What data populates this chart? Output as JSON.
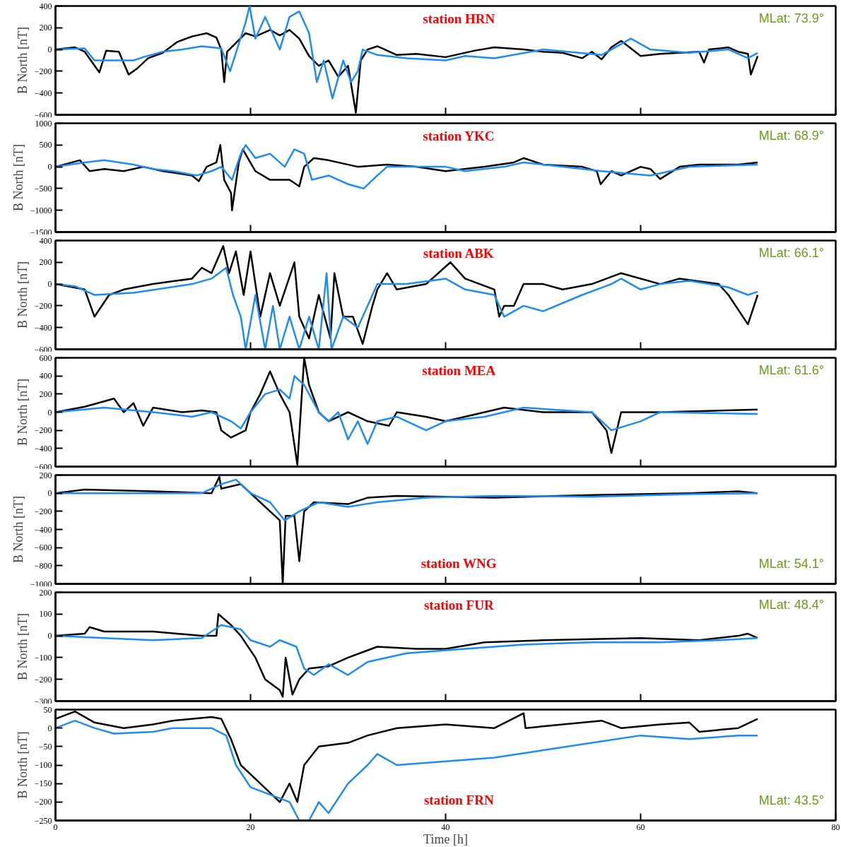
{
  "chart_data": [
    {
      "type": "line",
      "ylabel": "B North [nT]",
      "xlim": [
        0,
        80
      ],
      "xticks": [
        0,
        20,
        40,
        60,
        80
      ],
      "ylim": [
        -600,
        400
      ],
      "yticks": [
        -600,
        -400,
        -200,
        0,
        200,
        400
      ],
      "tick_labels": "y",
      "annotations": [
        "station HRN",
        "MLat: 73.9°"
      ],
      "series": [
        {
          "color": "#000000",
          "x": [
            0,
            2,
            3,
            4.5,
            5.2,
            6.5,
            7.5,
            8.3,
            9.5,
            11,
            12.5,
            14,
            15.5,
            16.5,
            17,
            17.3,
            17.6,
            18.5,
            19.5,
            20.5,
            22,
            23,
            24,
            25,
            26,
            27,
            28,
            29,
            30,
            30.8,
            31.3,
            32,
            33,
            35,
            37,
            40,
            43,
            45,
            48,
            50,
            52,
            54,
            55,
            56,
            57,
            58,
            60,
            62,
            64,
            66,
            66.5,
            67,
            69,
            70,
            71,
            71.3,
            72
          ],
          "values": [
            0,
            20,
            -20,
            -210,
            -10,
            -20,
            -230,
            -180,
            -80,
            -30,
            70,
            120,
            150,
            110,
            0,
            -300,
            -20,
            60,
            150,
            120,
            180,
            130,
            180,
            100,
            -60,
            -150,
            -100,
            -250,
            -150,
            -580,
            -100,
            0,
            30,
            -50,
            -40,
            -70,
            -10,
            20,
            0,
            -20,
            -30,
            -80,
            -20,
            -90,
            20,
            80,
            -60,
            -40,
            -30,
            -20,
            -120,
            0,
            20,
            -20,
            -40,
            -230,
            -60
          ]
        },
        {
          "color": "#1e8cf0",
          "x": [
            0,
            3,
            4,
            8,
            9,
            11,
            13,
            15,
            17,
            17.9,
            19.5,
            19.9,
            20.5,
            21.5,
            23,
            24,
            25,
            26,
            26.8,
            27.5,
            28.4,
            29.5,
            30.3,
            31,
            31.5,
            33,
            36,
            40,
            42,
            45,
            50,
            56,
            57,
            59,
            61,
            65,
            69,
            71,
            72
          ],
          "values": [
            0,
            10,
            -100,
            -100,
            -70,
            -20,
            0,
            30,
            10,
            -200,
            250,
            400,
            100,
            300,
            0,
            300,
            350,
            150,
            -300,
            -100,
            -450,
            -100,
            -300,
            -200,
            0,
            -50,
            -80,
            -100,
            -60,
            -80,
            0,
            -50,
            0,
            100,
            0,
            -30,
            0,
            -80,
            -30
          ]
        }
      ]
    },
    {
      "type": "line",
      "ylabel": "B North [nT]",
      "xlim": [
        0,
        80
      ],
      "xticks": [
        0,
        20,
        40,
        60,
        80
      ],
      "ylim": [
        -1500,
        1000
      ],
      "yticks": [
        -1500,
        -1000,
        -500,
        0,
        500,
        1000
      ],
      "tick_labels": "y",
      "annotations": [
        "station YKC",
        "MLat: 68.9°"
      ],
      "series": [
        {
          "color": "#000000",
          "x": [
            0,
            2.5,
            3.5,
            5,
            7,
            9,
            11,
            14,
            14.7,
            15.5,
            16.5,
            16.9,
            17.3,
            18,
            18.1,
            18.8,
            19.2,
            20.5,
            22,
            24,
            25,
            25.5,
            26.5,
            28,
            31,
            34,
            37,
            40,
            44,
            47,
            48,
            50,
            54,
            55.5,
            55.9,
            57,
            58,
            60,
            61,
            62,
            64,
            66,
            70,
            72
          ],
          "values": [
            0,
            150,
            -100,
            -50,
            -100,
            0,
            -100,
            -200,
            -330,
            0,
            100,
            500,
            -300,
            -600,
            -1000,
            100,
            400,
            -100,
            -300,
            -300,
            -450,
            0,
            200,
            150,
            0,
            50,
            0,
            -100,
            0,
            100,
            200,
            50,
            0,
            -100,
            -400,
            -100,
            -200,
            0,
            -50,
            -280,
            0,
            50,
            50,
            100
          ]
        },
        {
          "color": "#1e8cf0",
          "x": [
            0,
            3,
            5,
            8,
            10,
            12,
            14.5,
            16,
            17,
            18.1,
            19,
            19.5,
            20.5,
            22,
            23.5,
            24.5,
            25.5,
            26.3,
            28,
            30,
            31.6,
            33,
            34,
            40,
            42,
            46,
            48,
            52,
            56,
            61,
            65,
            72
          ],
          "values": [
            0,
            100,
            150,
            50,
            -50,
            -100,
            -200,
            -100,
            0,
            -300,
            300,
            500,
            200,
            300,
            0,
            400,
            300,
            -300,
            -200,
            -400,
            -500,
            -200,
            0,
            0,
            -100,
            0,
            100,
            0,
            -100,
            -200,
            0,
            50
          ]
        }
      ]
    },
    {
      "type": "line",
      "ylabel": "B North [nT]",
      "xlim": [
        0,
        80
      ],
      "xticks": [
        0,
        20,
        40,
        60,
        80
      ],
      "ylim": [
        -600,
        400
      ],
      "yticks": [
        -600,
        -400,
        -200,
        0,
        200,
        400
      ],
      "tick_labels": "y",
      "annotations": [
        "station ABK",
        "MLat: 66.1°"
      ],
      "series": [
        {
          "color": "#000000",
          "x": [
            0,
            3,
            4,
            5.5,
            7,
            10,
            14,
            15,
            16,
            17.2,
            17.8,
            18.5,
            19.3,
            20,
            21,
            22,
            23,
            24.5,
            25,
            26,
            27,
            28.2,
            28.6,
            29.5,
            30.5,
            31.5,
            32.5,
            33,
            34,
            35,
            38,
            40.5,
            42,
            45,
            45.5,
            46,
            47,
            48,
            50,
            52,
            55,
            58,
            62,
            64,
            68,
            69,
            71,
            72
          ],
          "values": [
            0,
            -50,
            -300,
            -100,
            -50,
            0,
            50,
            150,
            100,
            350,
            100,
            300,
            -100,
            300,
            -300,
            100,
            -200,
            200,
            -300,
            -500,
            -100,
            -500,
            100,
            -300,
            -300,
            -550,
            -200,
            -50,
            100,
            -50,
            0,
            200,
            50,
            -50,
            -300,
            -200,
            -200,
            0,
            0,
            -50,
            0,
            100,
            0,
            50,
            0,
            -100,
            -370,
            -100
          ]
        },
        {
          "color": "#1e8cf0",
          "x": [
            0,
            2,
            4,
            8,
            14,
            16,
            17.5,
            18.2,
            19,
            19.5,
            20.5,
            21.5,
            22.3,
            23,
            24,
            25,
            26,
            27,
            27.8,
            28.3,
            29.5,
            31,
            32,
            33,
            36,
            40,
            42,
            45,
            46,
            48,
            50,
            54,
            57,
            58,
            60,
            62,
            65,
            69,
            71,
            72
          ],
          "values": [
            0,
            -20,
            -100,
            -80,
            0,
            50,
            150,
            -100,
            -300,
            -600,
            -100,
            -600,
            -200,
            -600,
            -300,
            -600,
            -300,
            -600,
            100,
            -600,
            -300,
            -400,
            -200,
            0,
            0,
            50,
            -50,
            -100,
            -300,
            -200,
            -250,
            -100,
            0,
            50,
            -50,
            0,
            30,
            -30,
            -100,
            -70
          ]
        }
      ]
    },
    {
      "type": "line",
      "ylabel": "B North [nT]",
      "xlim": [
        0,
        80
      ],
      "xticks": [
        0,
        20,
        40,
        60,
        80
      ],
      "ylim": [
        -600,
        600
      ],
      "yticks": [
        -600,
        -400,
        -200,
        0,
        200,
        400,
        600
      ],
      "tick_labels": "y",
      "annotations": [
        "station MEA",
        "MLat: 61.6°"
      ],
      "series": [
        {
          "color": "#000000",
          "x": [
            0,
            3,
            6,
            7,
            8,
            9,
            10,
            13,
            15,
            16.5,
            17,
            18,
            19.5,
            20,
            21,
            22,
            23,
            24,
            24.8,
            25.5,
            26,
            27,
            28,
            30,
            32,
            34.2,
            35,
            38,
            40,
            44,
            46,
            50,
            55,
            56.5,
            57,
            58,
            62,
            72
          ],
          "values": [
            0,
            60,
            150,
            0,
            100,
            -150,
            50,
            0,
            20,
            0,
            -200,
            -280,
            -200,
            0,
            200,
            450,
            200,
            0,
            -580,
            600,
            300,
            0,
            -100,
            0,
            -100,
            -150,
            0,
            -50,
            -100,
            0,
            50,
            0,
            0,
            -200,
            -450,
            0,
            0,
            30
          ]
        },
        {
          "color": "#1e8cf0",
          "x": [
            0,
            5,
            10,
            14,
            16,
            18,
            19,
            20,
            21.5,
            23,
            24,
            24.5,
            25.5,
            27,
            28,
            29,
            30,
            31,
            32,
            33,
            35,
            38,
            40,
            44,
            48,
            55,
            57,
            60,
            62,
            72
          ],
          "values": [
            0,
            50,
            0,
            -50,
            0,
            -100,
            -180,
            0,
            200,
            250,
            150,
            400,
            300,
            0,
            -100,
            0,
            -300,
            -100,
            -350,
            -100,
            -50,
            -200,
            -100,
            -50,
            50,
            0,
            -200,
            -100,
            0,
            -20
          ]
        }
      ]
    },
    {
      "type": "line",
      "ylabel": "B North [nT]",
      "xlim": [
        0,
        80
      ],
      "xticks": [
        0,
        20,
        40,
        60,
        80
      ],
      "ylim": [
        -1000,
        200
      ],
      "yticks": [
        -1000,
        -800,
        -600,
        -400,
        -200,
        0,
        200
      ],
      "tick_labels": "y",
      "annotations": [
        "station WNG",
        "MLat: 54.1°"
      ],
      "series": [
        {
          "color": "#000000",
          "x": [
            0,
            3,
            10,
            16,
            16.8,
            17,
            19,
            21,
            22,
            23,
            23.3,
            23.6,
            24.5,
            25,
            25.5,
            26.5,
            30,
            32,
            35,
            45,
            55,
            65,
            70,
            72
          ],
          "values": [
            0,
            40,
            20,
            0,
            180,
            50,
            100,
            -100,
            -200,
            -300,
            -1000,
            -250,
            -250,
            -750,
            -200,
            -100,
            -120,
            -50,
            -30,
            -50,
            -20,
            0,
            20,
            0
          ]
        },
        {
          "color": "#1e8cf0",
          "x": [
            0,
            15,
            17,
            18.5,
            20,
            22,
            23.5,
            25,
            27,
            30,
            33,
            38,
            45,
            55,
            65,
            72
          ],
          "values": [
            0,
            0,
            100,
            150,
            0,
            -100,
            -300,
            -200,
            -100,
            -150,
            -100,
            -50,
            -30,
            -40,
            -10,
            0
          ]
        }
      ]
    },
    {
      "type": "line",
      "ylabel": "B North [nT]",
      "xlim": [
        0,
        80
      ],
      "xticks": [
        0,
        20,
        40,
        60,
        80
      ],
      "ylim": [
        -300,
        200
      ],
      "yticks": [
        -300,
        -200,
        -100,
        0,
        100,
        200
      ],
      "tick_labels": "y",
      "annotations": [
        "station FUR",
        "MLat: 48.4°"
      ],
      "series": [
        {
          "color": "#000000",
          "x": [
            0,
            3,
            3.5,
            5,
            10,
            15,
            16.5,
            16.7,
            18,
            19,
            20.5,
            21.5,
            23,
            23.3,
            23.6,
            24.3,
            25,
            26,
            28,
            30,
            33,
            37,
            40,
            44,
            50,
            60,
            66,
            70,
            71,
            72
          ],
          "values": [
            0,
            10,
            40,
            20,
            20,
            0,
            0,
            100,
            50,
            0,
            -100,
            -200,
            -250,
            -280,
            -100,
            -270,
            -200,
            -150,
            -140,
            -100,
            -50,
            -60,
            -60,
            -30,
            -20,
            -10,
            -20,
            0,
            10,
            -10
          ]
        },
        {
          "color": "#1e8cf0",
          "x": [
            0,
            5,
            10,
            15,
            17,
            19,
            20,
            22,
            23,
            24.7,
            25.5,
            26.5,
            28,
            30,
            32,
            36,
            42,
            48,
            55,
            62,
            68,
            72
          ],
          "values": [
            0,
            -10,
            -20,
            -10,
            50,
            30,
            -20,
            -50,
            -20,
            -50,
            -150,
            -180,
            -130,
            -180,
            -120,
            -80,
            -60,
            -40,
            -30,
            -30,
            -20,
            -10
          ]
        }
      ]
    },
    {
      "type": "line",
      "ylabel": "B North [nT]",
      "xlabel": "Time [h]",
      "xlim": [
        0,
        80
      ],
      "xticks": [
        0,
        20,
        40,
        60,
        80
      ],
      "ylim": [
        -250,
        50
      ],
      "yticks": [
        -250,
        -200,
        -150,
        -100,
        -50,
        0,
        50
      ],
      "annotations": [
        "station FRN",
        "MLat: 43.5°"
      ],
      "series": [
        {
          "color": "#000000",
          "x": [
            0,
            2,
            4,
            7,
            10,
            12,
            16,
            17,
            18,
            19,
            21,
            23,
            24,
            24.8,
            25.5,
            27,
            30,
            32,
            35,
            40,
            45,
            48,
            48.2,
            52,
            56,
            58,
            62,
            65,
            66,
            70,
            72
          ],
          "values": [
            25,
            45,
            15,
            0,
            10,
            20,
            30,
            25,
            -30,
            -100,
            -150,
            -200,
            -150,
            -200,
            -100,
            -50,
            -40,
            -20,
            0,
            10,
            0,
            40,
            0,
            10,
            20,
            0,
            10,
            15,
            -10,
            0,
            25
          ]
        },
        {
          "color": "#1e8cf0",
          "x": [
            0,
            2,
            4,
            6,
            10,
            12,
            16,
            17.5,
            18.5,
            20,
            22,
            24,
            25,
            26,
            27,
            28,
            30,
            32,
            33,
            35,
            40,
            45,
            50,
            55,
            60,
            65,
            70,
            72
          ],
          "values": [
            0,
            20,
            0,
            -15,
            -10,
            0,
            0,
            -20,
            -100,
            -160,
            -180,
            -200,
            -250,
            -250,
            -200,
            -230,
            -150,
            -100,
            -70,
            -100,
            -90,
            -80,
            -60,
            -40,
            -20,
            -30,
            -20,
            -20
          ]
        }
      ]
    }
  ]
}
